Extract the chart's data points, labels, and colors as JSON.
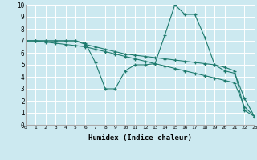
{
  "xlabel": "Humidex (Indice chaleur)",
  "xlim": [
    0,
    23
  ],
  "ylim": [
    0,
    10
  ],
  "bg_color": "#cce9f0",
  "line_color": "#1e7b6e",
  "grid_color": "#ffffff",
  "lines": [
    {
      "x": [
        0,
        1,
        2,
        3,
        4,
        5,
        6,
        7,
        8,
        9,
        10,
        11,
        12,
        13,
        14,
        15,
        16,
        17,
        18,
        19,
        20,
        21,
        22,
        23
      ],
      "y": [
        7,
        7,
        7,
        7,
        7,
        7,
        6.8,
        5.2,
        3.0,
        3.0,
        4.5,
        5.0,
        5.0,
        5.1,
        7.5,
        10.0,
        9.2,
        9.2,
        7.3,
        5.0,
        4.5,
        4.3,
        2.2,
        0.7
      ]
    },
    {
      "x": [
        0,
        1,
        2,
        3,
        4,
        5,
        6,
        7,
        8,
        9,
        10,
        11,
        12,
        13,
        14,
        15,
        16,
        17,
        18,
        19,
        20,
        21,
        22,
        23
      ],
      "y": [
        7,
        7,
        7,
        7,
        7,
        7,
        6.7,
        6.5,
        6.3,
        6.1,
        5.9,
        5.8,
        5.7,
        5.6,
        5.5,
        5.4,
        5.3,
        5.2,
        5.1,
        5.0,
        4.8,
        4.5,
        1.2,
        0.7
      ]
    },
    {
      "x": [
        0,
        1,
        2,
        3,
        4,
        5,
        6,
        7,
        8,
        9,
        10,
        11,
        12,
        13,
        14,
        15,
        16,
        17,
        18,
        19,
        20,
        21,
        22,
        23
      ],
      "y": [
        7,
        7,
        6.9,
        6.8,
        6.7,
        6.6,
        6.5,
        6.3,
        6.1,
        5.9,
        5.7,
        5.5,
        5.3,
        5.1,
        4.9,
        4.7,
        4.5,
        4.3,
        4.1,
        3.9,
        3.7,
        3.5,
        1.5,
        0.7
      ]
    }
  ]
}
